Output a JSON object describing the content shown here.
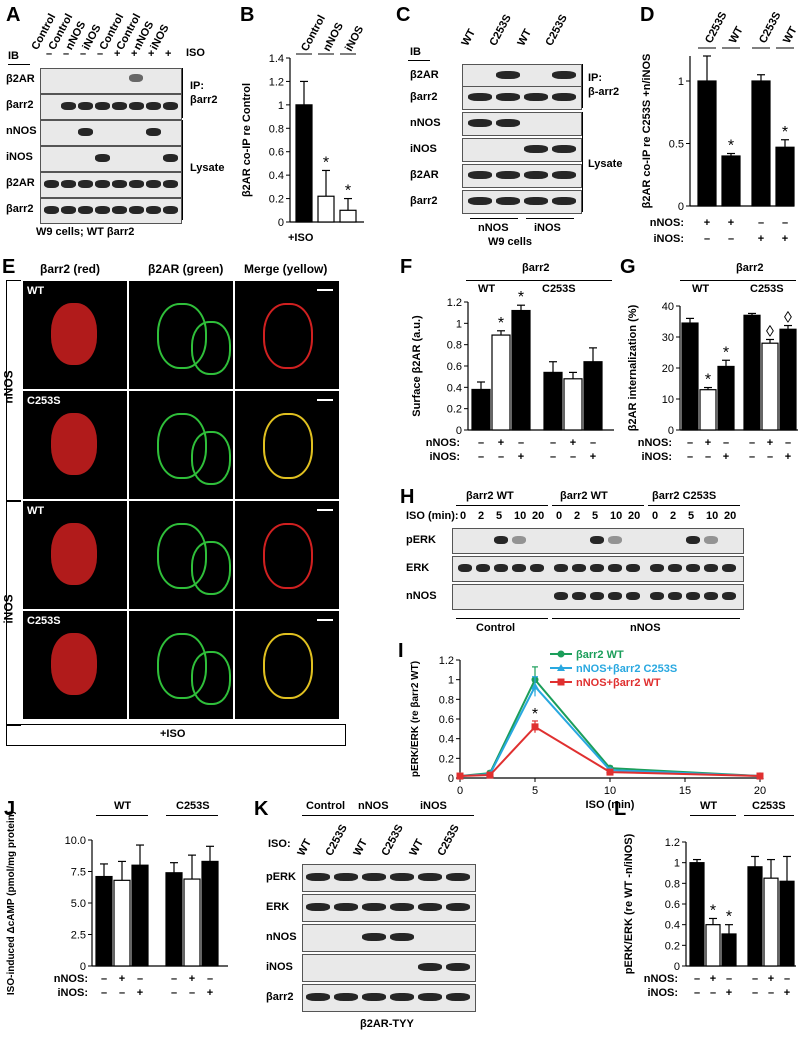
{
  "panels": {
    "A": {
      "letter": "A",
      "ib": "IB",
      "lanes": [
        "Control",
        "Control",
        "nNOS",
        "iNOS",
        "Control",
        "Control",
        "nNOS",
        "iNOS"
      ],
      "iso_signs": [
        "–",
        "–",
        "–",
        "–",
        "+",
        "+",
        "+",
        "+"
      ],
      "iso": "ISO",
      "rows": [
        "β2AR",
        "βarr2",
        "nNOS",
        "iNOS",
        "β2AR",
        "βarr2"
      ],
      "group_ip": "IP:",
      "group_ip2": "βarr2",
      "group_lysate": "Lysate",
      "footer": "W9 cells; WT βarr2"
    },
    "B": {
      "letter": "B",
      "footer": "+ISO"
    },
    "C": {
      "letter": "C",
      "ib": "IB",
      "lanes": [
        "WT",
        "C253S",
        "WT",
        "C253S"
      ],
      "rows": [
        "β2AR",
        "βarr2",
        "nNOS",
        "iNOS",
        "β2AR",
        "βarr2"
      ],
      "group_ip": "IP:",
      "group_ip2": "β-arr2",
      "group_lysate": "Lysate",
      "group_nnos": "nNOS",
      "group_inos": "iNOS",
      "footer": "W9 cells"
    },
    "D": {
      "letter": "D"
    },
    "E": {
      "letter": "E",
      "cols": [
        "βarr2 (red)",
        "β2AR (green)",
        "Merge (yellow)"
      ],
      "groups": [
        "nNOS",
        "iNOS"
      ],
      "rows": [
        "WT",
        "C253S",
        "WT",
        "C253S"
      ],
      "footer": "+ISO"
    },
    "F": {
      "letter": "F",
      "group": "βarr2",
      "wt": "WT",
      "c253s": "C253S"
    },
    "G": {
      "letter": "G",
      "group": "βarr2",
      "wt": "WT",
      "c253s": "C253S"
    },
    "H": {
      "letter": "H",
      "groups": [
        "βarr2 WT",
        "βarr2 WT",
        "βarr2 C253S"
      ],
      "iso": "ISO (min):",
      "times": [
        "0",
        "2",
        "5",
        "10",
        "20",
        "0",
        "2",
        "5",
        "10",
        "20",
        "0",
        "2",
        "5",
        "10",
        "20"
      ],
      "rows": [
        "pERK",
        "ERK",
        "nNOS"
      ],
      "footer_control": "Control",
      "footer_nnos": "nNOS"
    },
    "I": {
      "letter": "I"
    },
    "J": {
      "letter": "J",
      "wt": "WT",
      "c253s": "C253S"
    },
    "K": {
      "letter": "K",
      "top": [
        "Control",
        "nNOS",
        "iNOS"
      ],
      "iso": "ISO:",
      "lanes": [
        "WT",
        "C253S",
        "WT",
        "C253S",
        "WT",
        "C253S"
      ],
      "rows": [
        "pERK",
        "ERK",
        "nNOS",
        "iNOS",
        "βarr2"
      ],
      "footer": "β2AR-TYY"
    },
    "L": {
      "letter": "L",
      "wt": "WT",
      "c253s": "C253S"
    }
  },
  "signs": {
    "nnos_label": "nNOS:",
    "inos_label": "iNOS:",
    "nnos_row": [
      "–",
      "+",
      "–",
      "–",
      "+",
      "–"
    ],
    "inos_row": [
      "–",
      "–",
      "+",
      "–",
      "–",
      "+"
    ],
    "d_nnos_label": "nNOS:",
    "d_inos_label": "iNOS:",
    "d_nnos": [
      "+",
      "+",
      "–",
      "–"
    ],
    "d_inos": [
      "–",
      "–",
      "+",
      "+"
    ]
  },
  "colors": {
    "wt_line": "#1b9e5a",
    "c253s_line": "#29a8e0",
    "nnos_wt_line": "#e03030",
    "bar_black": "#000000",
    "bar_white": "#ffffff"
  },
  "chart_data": [
    {
      "panel": "B",
      "type": "bar",
      "categories": [
        "Control",
        "nNOS",
        "iNOS"
      ],
      "values": [
        1.0,
        0.22,
        0.1
      ],
      "errors": [
        0.2,
        0.22,
        0.1
      ],
      "significance": [
        "",
        "*",
        "*"
      ],
      "ylabel": "β2AR co-IP re Control",
      "ylim": [
        0,
        1.4
      ],
      "yticks": [
        "0",
        "0.2",
        "0.4",
        "0.6",
        "0.8",
        "1",
        "1.2",
        "1.4"
      ]
    },
    {
      "panel": "D",
      "type": "bar",
      "categories": [
        "C253S",
        "WT",
        "C253S",
        "WT"
      ],
      "values": [
        1.0,
        0.4,
        1.0,
        0.47
      ],
      "errors": [
        0.2,
        0.02,
        0.05,
        0.06
      ],
      "significance": [
        "",
        "*",
        "",
        "*"
      ],
      "ylabel": "β2AR co-IP re C253S +n/iNOS",
      "ylim": [
        0,
        1.2
      ],
      "yticks": [
        "0",
        "0.5",
        "1"
      ]
    },
    {
      "panel": "F",
      "type": "bar",
      "categories": [
        "WT –",
        "WT nNOS",
        "WT iNOS",
        "C253S –",
        "C253S nNOS",
        "C253S iNOS"
      ],
      "values": [
        0.38,
        0.89,
        1.12,
        0.54,
        0.48,
        0.64
      ],
      "errors": [
        0.07,
        0.04,
        0.05,
        0.1,
        0.06,
        0.13
      ],
      "fills": [
        "black",
        "white",
        "black",
        "black",
        "white",
        "black"
      ],
      "significance": [
        "",
        "*",
        "*",
        "",
        "",
        ""
      ],
      "ylabel": "Surface β2AR (a.u.)",
      "ylim": [
        0,
        1.2
      ],
      "yticks": [
        "0",
        "0.2",
        "0.4",
        "0.6",
        "0.8",
        "1",
        "1.2"
      ]
    },
    {
      "panel": "G",
      "type": "bar",
      "categories": [
        "WT –",
        "WT nNOS",
        "WT iNOS",
        "C253S –",
        "C253S nNOS",
        "C253S iNOS"
      ],
      "values": [
        34.5,
        13,
        20.5,
        37,
        28,
        32.5
      ],
      "errors": [
        1.5,
        0.7,
        2,
        0.6,
        1.2,
        1.2
      ],
      "fills": [
        "black",
        "white",
        "black",
        "black",
        "white",
        "black"
      ],
      "significance": [
        "",
        "*",
        "*",
        "",
        "◊",
        "◊"
      ],
      "ylabel": "β2AR internalization (%)",
      "ylim": [
        0,
        40
      ],
      "yticks": [
        "0",
        "10",
        "20",
        "30",
        "40"
      ]
    },
    {
      "panel": "I",
      "type": "line",
      "x": [
        0,
        2,
        5,
        10,
        20
      ],
      "series": [
        {
          "name": "βarr2 WT",
          "values": [
            0.02,
            0.05,
            1.0,
            0.1,
            0.02
          ],
          "errors": [
            0.02,
            0.02,
            0.13,
            0.02,
            0.01
          ]
        },
        {
          "name": "nNOS+βarr2 C253S",
          "values": [
            0.02,
            0.04,
            0.93,
            0.08,
            0.02
          ],
          "errors": [
            0.02,
            0.02,
            0.1,
            0.02,
            0.01
          ]
        },
        {
          "name": "nNOS+βarr2 WT",
          "values": [
            0.02,
            0.03,
            0.52,
            0.06,
            0.02
          ],
          "errors": [
            0.02,
            0.02,
            0.06,
            0.02,
            0.01
          ]
        }
      ],
      "significance": [
        "",
        "",
        "*",
        "",
        ""
      ],
      "xlabel": "ISO (min)",
      "ylabel": "pERK/ERK (re βarr2 WT)",
      "xlim": [
        0,
        20
      ],
      "ylim": [
        0,
        1.2
      ],
      "xticks": [
        "0",
        "5",
        "10",
        "15",
        "20"
      ],
      "yticks": [
        "0",
        "0.2",
        "0.4",
        "0.6",
        "0.8",
        "1",
        "1.2"
      ]
    },
    {
      "panel": "J",
      "type": "bar",
      "categories": [
        "WT –",
        "WT nNOS",
        "WT iNOS",
        "C253S –",
        "C253S nNOS",
        "C253S iNOS"
      ],
      "values": [
        7.1,
        6.8,
        8.0,
        7.4,
        6.9,
        8.3
      ],
      "errors": [
        1.0,
        1.5,
        1.6,
        0.8,
        1.9,
        1.2
      ],
      "fills": [
        "black",
        "white",
        "black",
        "black",
        "white",
        "black"
      ],
      "ylabel": "ISO-induced ΔcAMP (pmol/mg protein)",
      "ylim": [
        0,
        10
      ],
      "yticks": [
        "0",
        "2.5",
        "5.0",
        "7.5",
        "10.0"
      ]
    },
    {
      "panel": "L",
      "type": "bar",
      "categories": [
        "WT –",
        "WT nNOS",
        "WT iNOS",
        "C253S –",
        "C253S nNOS",
        "C253S iNOS"
      ],
      "values": [
        1.0,
        0.4,
        0.31,
        0.96,
        0.85,
        0.82
      ],
      "errors": [
        0.03,
        0.06,
        0.09,
        0.1,
        0.18,
        0.24
      ],
      "fills": [
        "black",
        "white",
        "black",
        "black",
        "white",
        "black"
      ],
      "significance": [
        "",
        "*",
        "*",
        "",
        "",
        ""
      ],
      "ylabel": "pERK/ERK (re WT -n/iNOS)",
      "ylim": [
        0,
        1.2
      ],
      "yticks": [
        "0",
        "0.2",
        "0.4",
        "0.6",
        "0.8",
        "1",
        "1.2"
      ]
    }
  ]
}
